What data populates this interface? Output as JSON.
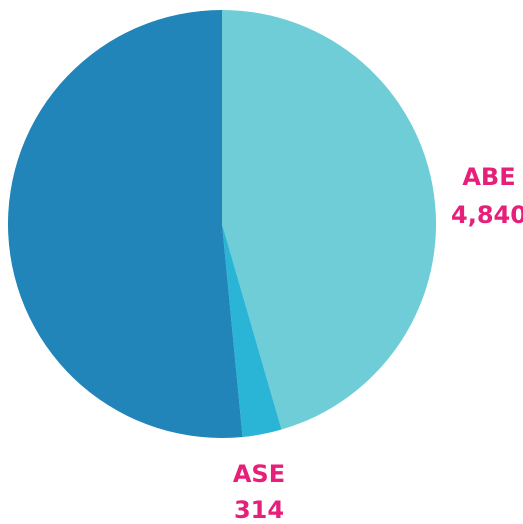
{
  "chart_data": {
    "type": "pie",
    "title": "",
    "legend": "none",
    "start_angle_deg": 0,
    "direction": "clockwise",
    "slices": [
      {
        "label": "ABE",
        "value": 4840,
        "display_value": "4,840",
        "color": "#6ECDD6",
        "labeled": true
      },
      {
        "label": "ASE",
        "value": 314,
        "display_value": "314",
        "color": "#2AB4D6",
        "labeled": true
      },
      {
        "label": "",
        "value": 5480,
        "display_value": "",
        "color": "#2185BA",
        "labeled": false
      }
    ]
  },
  "colors": {
    "label_text": "#E61F7A",
    "background": "#FFFFFF"
  }
}
